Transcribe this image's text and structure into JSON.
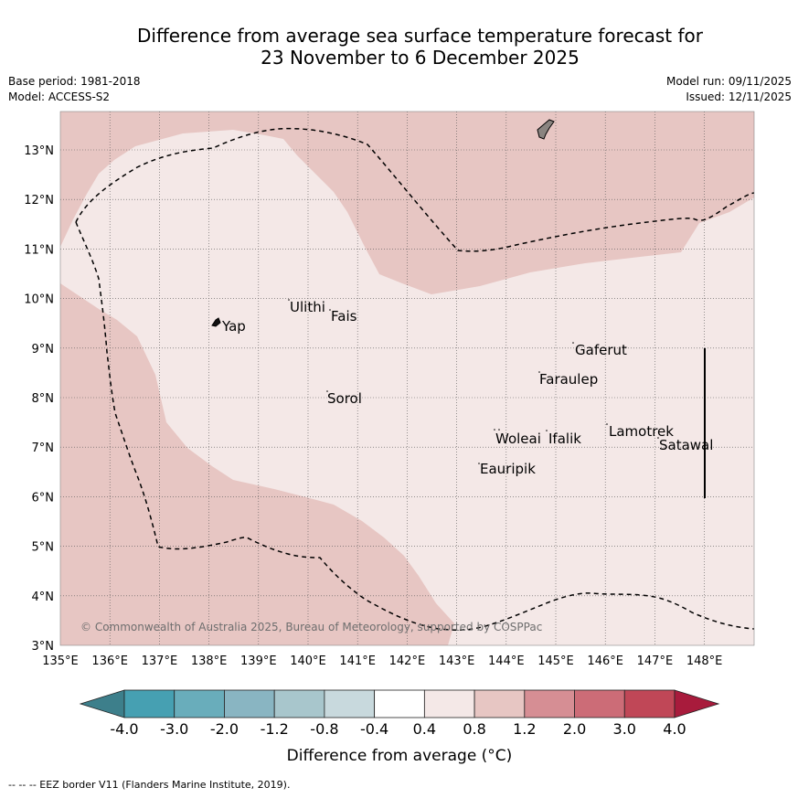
{
  "title": {
    "line1": "Difference from average sea surface temperature forecast for",
    "line2": "23 November to 6 December 2025"
  },
  "meta": {
    "base_period": "Base period: 1981-2018",
    "model": "Model: ACCESS-S2",
    "model_run": "Model run: 09/11/2025",
    "issued": "Issued: 12/11/2025"
  },
  "map": {
    "lon_ticks": [
      "135°E",
      "136°E",
      "137°E",
      "138°E",
      "139°E",
      "140°E",
      "141°E",
      "142°E",
      "143°E",
      "144°E",
      "145°E",
      "146°E",
      "147°E",
      "148°E"
    ],
    "lat_ticks": [
      "3°N",
      "4°N",
      "5°N",
      "6°N",
      "7°N",
      "8°N",
      "9°N",
      "10°N",
      "11°N",
      "12°N",
      "13°N"
    ],
    "places": [
      "Ulithi",
      "Fais",
      "Yap",
      "Gaferut",
      "Faraulep",
      "Sorol",
      "Lamotrek",
      "Woleai",
      "Ifalik",
      "Satawal",
      "Eauripik"
    ],
    "credit": "© Commonwealth of Australia 2025, Bureau of Meteorology, supported by COSPPac",
    "colors": {
      "anom_0_4_to_0_8": "#f4e8e7",
      "anom_0_8_to_1_2": "#e7c6c3",
      "land": "#8a8480",
      "eez": "#000000"
    }
  },
  "colorbar": {
    "labels": [
      "-4.0",
      "-3.0",
      "-2.0",
      "-1.2",
      "-0.8",
      "-0.4",
      "0.4",
      "0.8",
      "1.2",
      "2.0",
      "3.0",
      "4.0"
    ],
    "colors": [
      "#3d7f8b",
      "#46a0b2",
      "#69adbb",
      "#89b5c2",
      "#a8c6cc",
      "#c8d9dd",
      "#ffffff",
      "#f4e8e7",
      "#e7c6c3",
      "#d68e94",
      "#cc6c77",
      "#c04757",
      "#a81b3c"
    ],
    "label": "Difference from average (°C)"
  },
  "footer": "-- -- -- EEZ border V11 (Flanders Marine Institute, 2019)."
}
